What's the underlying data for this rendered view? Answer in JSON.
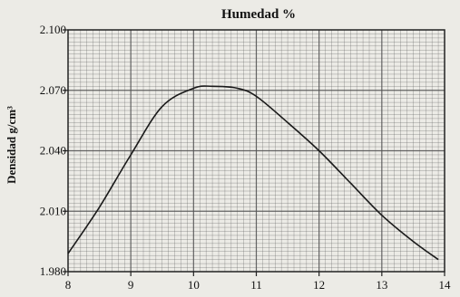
{
  "chart_data": {
    "type": "line",
    "title": "Humedad %",
    "xlabel": "",
    "ylabel": "Densidad g/cm³",
    "xlim": [
      8,
      14
    ],
    "ylim": [
      1.98,
      2.1
    ],
    "x_ticks": [
      "8",
      "9",
      "10",
      "11",
      "12",
      "13",
      "14"
    ],
    "y_ticks": [
      "1.980",
      "2.010",
      "2.040",
      "2.070",
      "2.100"
    ],
    "grid": true,
    "series": [
      {
        "x": [
          8.0,
          8.5,
          9.0,
          9.5,
          10.0,
          10.3,
          10.7,
          11.0,
          11.5,
          12.0,
          12.5,
          13.0,
          13.5,
          13.9
        ],
        "y": [
          1.989,
          2.012,
          2.038,
          2.062,
          2.071,
          2.072,
          2.071,
          2.067,
          2.054,
          2.04,
          2.024,
          2.008,
          1.995,
          1.986
        ]
      }
    ],
    "colors": {
      "line": "#1a1a1a",
      "grid": "#555555",
      "background": "#ecebe6"
    }
  }
}
